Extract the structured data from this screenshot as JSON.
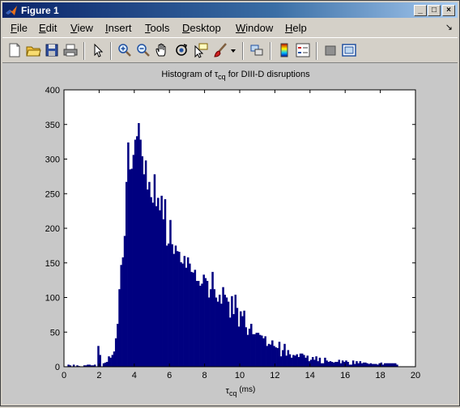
{
  "window": {
    "title": "Figure 1",
    "buttons": {
      "minimize": "_",
      "maximize": "□",
      "close": "×"
    }
  },
  "menu": {
    "items": [
      {
        "label": "File",
        "key": "F",
        "rest": "ile"
      },
      {
        "label": "Edit",
        "key": "E",
        "rest": "dit"
      },
      {
        "label": "View",
        "key": "V",
        "rest": "iew"
      },
      {
        "label": "Insert",
        "key": "I",
        "rest": "nsert"
      },
      {
        "label": "Tools",
        "key": "T",
        "rest": "ools"
      },
      {
        "label": "Desktop",
        "key": "D",
        "rest": "esktop"
      },
      {
        "label": "Window",
        "key": "W",
        "rest": "indow"
      },
      {
        "label": "Help",
        "key": "H",
        "rest": "elp"
      }
    ],
    "dock_arrow": "↘"
  },
  "toolbar": {
    "icons": [
      "new-figure-icon",
      "open-file-icon",
      "save-icon",
      "print-icon",
      "edit-plot-icon",
      "zoom-in-icon",
      "zoom-out-icon",
      "pan-icon",
      "rotate-3d-icon",
      "data-cursor-icon",
      "brush-icon",
      "link-plot-icon",
      "colorbar-icon",
      "legend-icon",
      "hide-plot-tools-icon",
      "show-plot-tools-icon"
    ]
  },
  "chart_data": {
    "type": "bar",
    "title_main": "Histogram of ",
    "title_sym": "τ",
    "title_sub": "cq",
    "title_rest": " for DIII-D disruptions",
    "xlabel_sym": "τ",
    "xlabel_sub": "cq",
    "xlabel_rest": " (ms)",
    "xlim": [
      0,
      20
    ],
    "ylim": [
      0,
      400
    ],
    "xticks": [
      "0",
      "2",
      "4",
      "6",
      "8",
      "10",
      "12",
      "14",
      "16",
      "18",
      "20"
    ],
    "yticks": [
      "0",
      "50",
      "100",
      "150",
      "200",
      "250",
      "300",
      "350",
      "400"
    ],
    "bar_color": "#000080",
    "bin_width": 0.1,
    "bin_start": 0,
    "values": [
      0,
      0,
      3,
      2,
      0,
      3,
      0,
      2,
      1,
      0,
      0,
      2,
      2,
      3,
      3,
      2,
      2,
      3,
      0,
      30,
      17,
      0,
      5,
      6,
      7,
      15,
      13,
      17,
      22,
      41,
      62,
      112,
      147,
      158,
      189,
      267,
      324,
      285,
      286,
      306,
      328,
      333,
      352,
      328,
      304,
      278,
      298,
      256,
      267,
      245,
      237,
      278,
      232,
      244,
      226,
      247,
      213,
      242,
      175,
      178,
      212,
      177,
      163,
      175,
      167,
      166,
      151,
      149,
      160,
      143,
      158,
      149,
      137,
      136,
      140,
      124,
      124,
      117,
      120,
      133,
      128,
      124,
      100,
      112,
      137,
      112,
      100,
      94,
      104,
      91,
      115,
      104,
      100,
      94,
      71,
      102,
      76,
      104,
      85,
      58,
      80,
      73,
      81,
      57,
      46,
      55,
      62,
      47,
      47,
      49,
      49,
      46,
      45,
      41,
      44,
      30,
      33,
      32,
      38,
      30,
      28,
      27,
      36,
      15,
      24,
      33,
      16,
      24,
      18,
      13,
      17,
      16,
      18,
      14,
      19,
      19,
      17,
      13,
      16,
      8,
      10,
      14,
      10,
      15,
      8,
      13,
      5,
      5,
      13,
      9,
      7,
      8,
      7,
      6,
      7,
      7,
      10,
      5,
      9,
      7,
      9,
      7,
      3,
      3,
      9,
      4,
      8,
      5,
      8,
      5,
      6,
      6,
      5,
      4,
      5,
      4,
      4,
      4,
      3,
      5,
      6,
      3,
      5,
      5,
      5,
      5,
      5,
      5,
      5,
      3
    ]
  }
}
